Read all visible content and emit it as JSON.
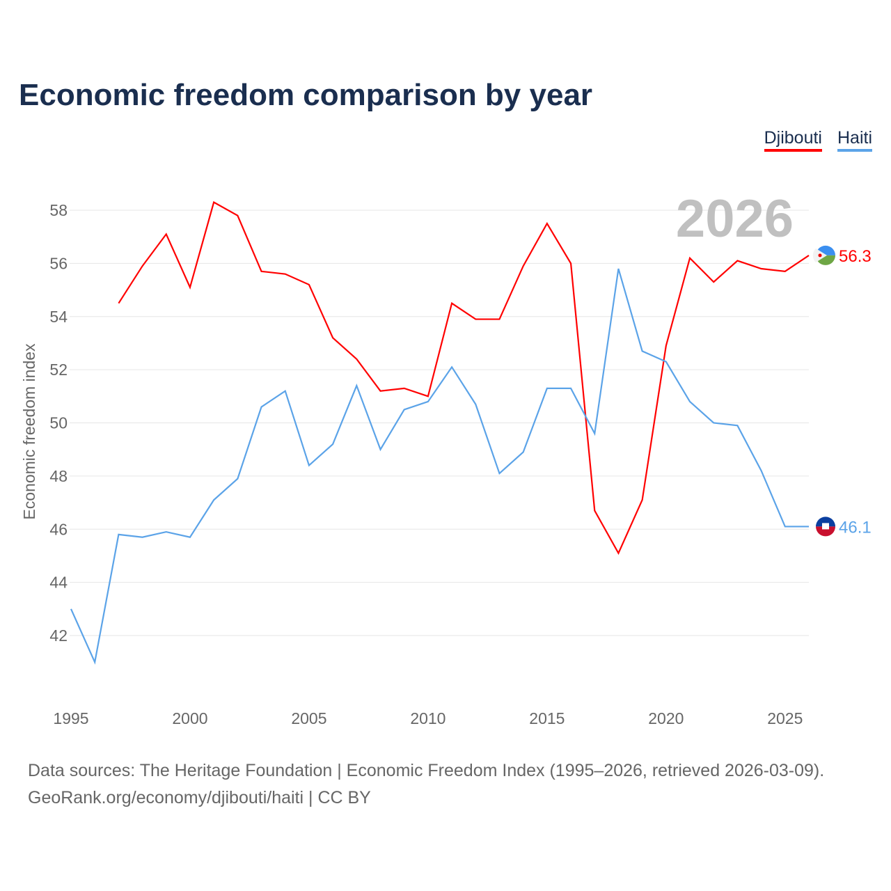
{
  "title": "Economic freedom comparison by year",
  "legend": [
    {
      "label": "Djibouti",
      "color": "#ff0000"
    },
    {
      "label": "Haiti",
      "color": "#5ba3e8"
    }
  ],
  "year_watermark": "2026",
  "source_line1": "Data sources: The Heritage Foundation | Economic Freedom Index (1995–2026, retrieved 2026-03-09).",
  "source_line2": "GeoRank.org/economy/djibouti/haiti | CC BY",
  "chart_data": {
    "type": "line",
    "title": "Economic freedom comparison by year",
    "xlabel": "",
    "ylabel": "Economic freedom index",
    "xlim": [
      1995,
      2026
    ],
    "ylim": [
      42,
      58
    ],
    "yticks": [
      42,
      44,
      46,
      48,
      50,
      52,
      54,
      56,
      58
    ],
    "xticks": [
      1995,
      2000,
      2005,
      2010,
      2015,
      2020,
      2025
    ],
    "grid": true,
    "legend_position": "top-right",
    "series": [
      {
        "name": "Djibouti",
        "color": "#ff0000",
        "end_label": "56.3",
        "x": [
          1997,
          1998,
          1999,
          2000,
          2001,
          2002,
          2003,
          2004,
          2005,
          2006,
          2007,
          2008,
          2009,
          2010,
          2011,
          2012,
          2013,
          2014,
          2015,
          2016,
          2017,
          2018,
          2019,
          2020,
          2021,
          2022,
          2023,
          2024,
          2025,
          2026
        ],
        "values": [
          54.5,
          55.9,
          57.1,
          55.1,
          58.3,
          57.8,
          55.7,
          55.6,
          55.2,
          53.2,
          52.4,
          51.2,
          51.3,
          51.0,
          54.5,
          53.9,
          53.9,
          55.9,
          57.5,
          56.0,
          46.7,
          45.1,
          47.1,
          52.9,
          56.2,
          55.3,
          56.1,
          55.8,
          55.7,
          56.3
        ]
      },
      {
        "name": "Haiti",
        "color": "#5ba3e8",
        "end_label": "46.1",
        "x": [
          1995,
          1996,
          1997,
          1998,
          1999,
          2000,
          2001,
          2002,
          2003,
          2004,
          2005,
          2006,
          2007,
          2008,
          2009,
          2010,
          2011,
          2012,
          2013,
          2014,
          2015,
          2016,
          2017,
          2018,
          2019,
          2020,
          2021,
          2022,
          2023,
          2024,
          2025,
          2026
        ],
        "values": [
          43.0,
          41.0,
          45.8,
          45.7,
          45.9,
          45.7,
          47.1,
          47.9,
          50.6,
          51.2,
          48.4,
          49.2,
          51.4,
          49.0,
          50.5,
          50.8,
          52.1,
          50.7,
          48.1,
          48.9,
          51.3,
          51.3,
          49.6,
          55.8,
          52.7,
          52.3,
          50.8,
          50.0,
          49.9,
          48.2,
          46.1,
          46.1
        ]
      }
    ]
  }
}
